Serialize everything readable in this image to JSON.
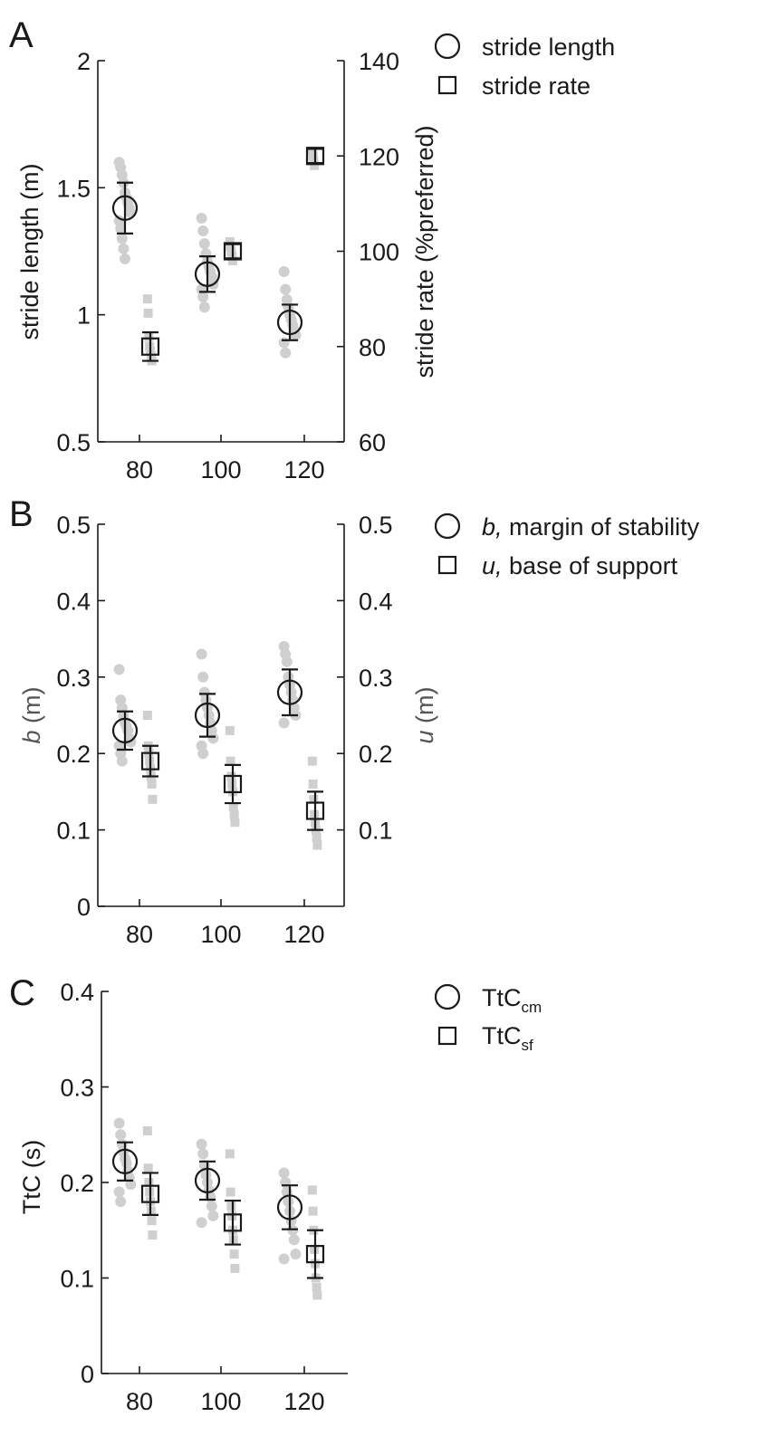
{
  "panels": [
    {
      "letter": "A",
      "legend": [
        {
          "marker": "circle",
          "prefix": "",
          "text": "stride length"
        },
        {
          "marker": "square",
          "prefix": "",
          "text": "stride rate"
        }
      ]
    },
    {
      "letter": "B",
      "legend": [
        {
          "marker": "circle",
          "prefix": "b,",
          "text": " margin of stability"
        },
        {
          "marker": "square",
          "prefix": "u,",
          "text": " base of support"
        }
      ]
    },
    {
      "letter": "C",
      "legend": [
        {
          "marker": "circle",
          "prefix": "",
          "text": "TtC",
          "sub": "cm"
        },
        {
          "marker": "square",
          "prefix": "",
          "text": "TtC",
          "sub": "sf"
        }
      ]
    }
  ],
  "chart_data": [
    {
      "type": "scatter",
      "panel": "A",
      "categories": [
        "80",
        "100",
        "120"
      ],
      "x": [
        80,
        100,
        120
      ],
      "ylabel_left": "stride length (m)",
      "ylabel_right": "stride rate (%preferred)",
      "ylim_left": [
        0.5,
        2
      ],
      "yticks_left": [
        "0.5",
        "1",
        "1.5",
        "2"
      ],
      "ylim_right": [
        60,
        140
      ],
      "yticks_right": [
        "60",
        "80",
        "100",
        "120",
        "140"
      ],
      "series": [
        {
          "name": "stride length",
          "marker": "circle",
          "axis": "left",
          "mean": [
            1.42,
            1.16,
            0.97
          ],
          "err": [
            0.1,
            0.07,
            0.07
          ],
          "raw": [
            [
              1.6,
              1.58,
              1.55,
              1.52,
              1.48,
              1.46,
              1.44,
              1.42,
              1.4,
              1.37,
              1.34,
              1.3,
              1.26,
              1.22
            ],
            [
              1.38,
              1.33,
              1.28,
              1.24,
              1.21,
              1.19,
              1.17,
              1.15,
              1.12,
              1.1,
              1.07,
              1.03
            ],
            [
              1.17,
              1.1,
              1.06,
              1.03,
              1.0,
              0.98,
              0.96,
              0.94,
              0.92,
              0.89,
              0.85
            ]
          ]
        },
        {
          "name": "stride rate",
          "marker": "square",
          "axis": "right",
          "mean": [
            80,
            100,
            120
          ],
          "err": [
            3,
            1.5,
            1.5
          ],
          "raw": [
            [
              90,
              87,
              82,
              80,
              79,
              78,
              77
            ],
            [
              102,
              101,
              100,
              99,
              98
            ],
            [
              121,
              120,
              119,
              118
            ]
          ]
        }
      ]
    },
    {
      "type": "scatter",
      "panel": "B",
      "categories": [
        "80",
        "100",
        "120"
      ],
      "x": [
        80,
        100,
        120
      ],
      "ylabel_left_var": "b",
      "ylabel_left_unit": " (m)",
      "ylabel_right_var": "u",
      "ylabel_right_unit": " (m)",
      "ylim_left": [
        0,
        0.5
      ],
      "yticks_left": [
        "0",
        "0.1",
        "0.2",
        "0.3",
        "0.4",
        "0.5"
      ],
      "ylim_right": [
        0,
        0.5
      ],
      "yticks_right": [
        "0.1",
        "0.2",
        "0.3",
        "0.4",
        "0.5"
      ],
      "series": [
        {
          "name": "b, margin of stability",
          "marker": "circle",
          "axis": "left",
          "mean": [
            0.23,
            0.25,
            0.28
          ],
          "err": [
            0.025,
            0.028,
            0.03
          ],
          "raw": [
            [
              0.31,
              0.27,
              0.26,
              0.25,
              0.24,
              0.235,
              0.23,
              0.22,
              0.215,
              0.21,
              0.2,
              0.19
            ],
            [
              0.33,
              0.3,
              0.28,
              0.27,
              0.26,
              0.25,
              0.24,
              0.23,
              0.22,
              0.21,
              0.2
            ],
            [
              0.34,
              0.33,
              0.32,
              0.3,
              0.29,
              0.28,
              0.27,
              0.26,
              0.25,
              0.24
            ]
          ]
        },
        {
          "name": "u, base of support",
          "marker": "square",
          "axis": "right",
          "mean": [
            0.19,
            0.16,
            0.125
          ],
          "err": [
            0.02,
            0.025,
            0.025
          ],
          "raw": [
            [
              0.25,
              0.21,
              0.2,
              0.19,
              0.18,
              0.17,
              0.16,
              0.14
            ],
            [
              0.23,
              0.19,
              0.17,
              0.16,
              0.15,
              0.13,
              0.12,
              0.11
            ],
            [
              0.19,
              0.16,
              0.14,
              0.12,
              0.11,
              0.1,
              0.09,
              0.08
            ]
          ]
        }
      ]
    },
    {
      "type": "scatter",
      "panel": "C",
      "categories": [
        "80",
        "100",
        "120"
      ],
      "x": [
        80,
        100,
        120
      ],
      "ylabel_left": "TtC (s)",
      "ylim_left": [
        0,
        0.4
      ],
      "yticks_left": [
        "0",
        "0.1",
        "0.2",
        "0.3",
        "0.4"
      ],
      "series": [
        {
          "name": "TtC_cm",
          "marker": "circle",
          "axis": "left",
          "mean": [
            0.222,
            0.202,
            0.174
          ],
          "err": [
            0.02,
            0.02,
            0.023
          ],
          "raw": [
            [
              0.262,
              0.25,
              0.24,
              0.232,
              0.225,
              0.22,
              0.212,
              0.205,
              0.198,
              0.19,
              0.18
            ],
            [
              0.24,
              0.23,
              0.218,
              0.208,
              0.2,
              0.192,
              0.185,
              0.175,
              0.165,
              0.158
            ],
            [
              0.21,
              0.2,
              0.19,
              0.18,
              0.17,
              0.16,
              0.15,
              0.14,
              0.125,
              0.12
            ]
          ]
        },
        {
          "name": "TtC_sf",
          "marker": "square",
          "axis": "left",
          "mean": [
            0.188,
            0.158,
            0.125
          ],
          "err": [
            0.022,
            0.023,
            0.025
          ],
          "raw": [
            [
              0.254,
              0.215,
              0.2,
              0.19,
              0.18,
              0.17,
              0.16,
              0.145
            ],
            [
              0.23,
              0.19,
              0.175,
              0.165,
              0.15,
              0.14,
              0.125,
              0.11
            ],
            [
              0.192,
              0.17,
              0.15,
              0.13,
              0.115,
              0.1,
              0.09,
              0.082
            ]
          ]
        }
      ]
    }
  ]
}
